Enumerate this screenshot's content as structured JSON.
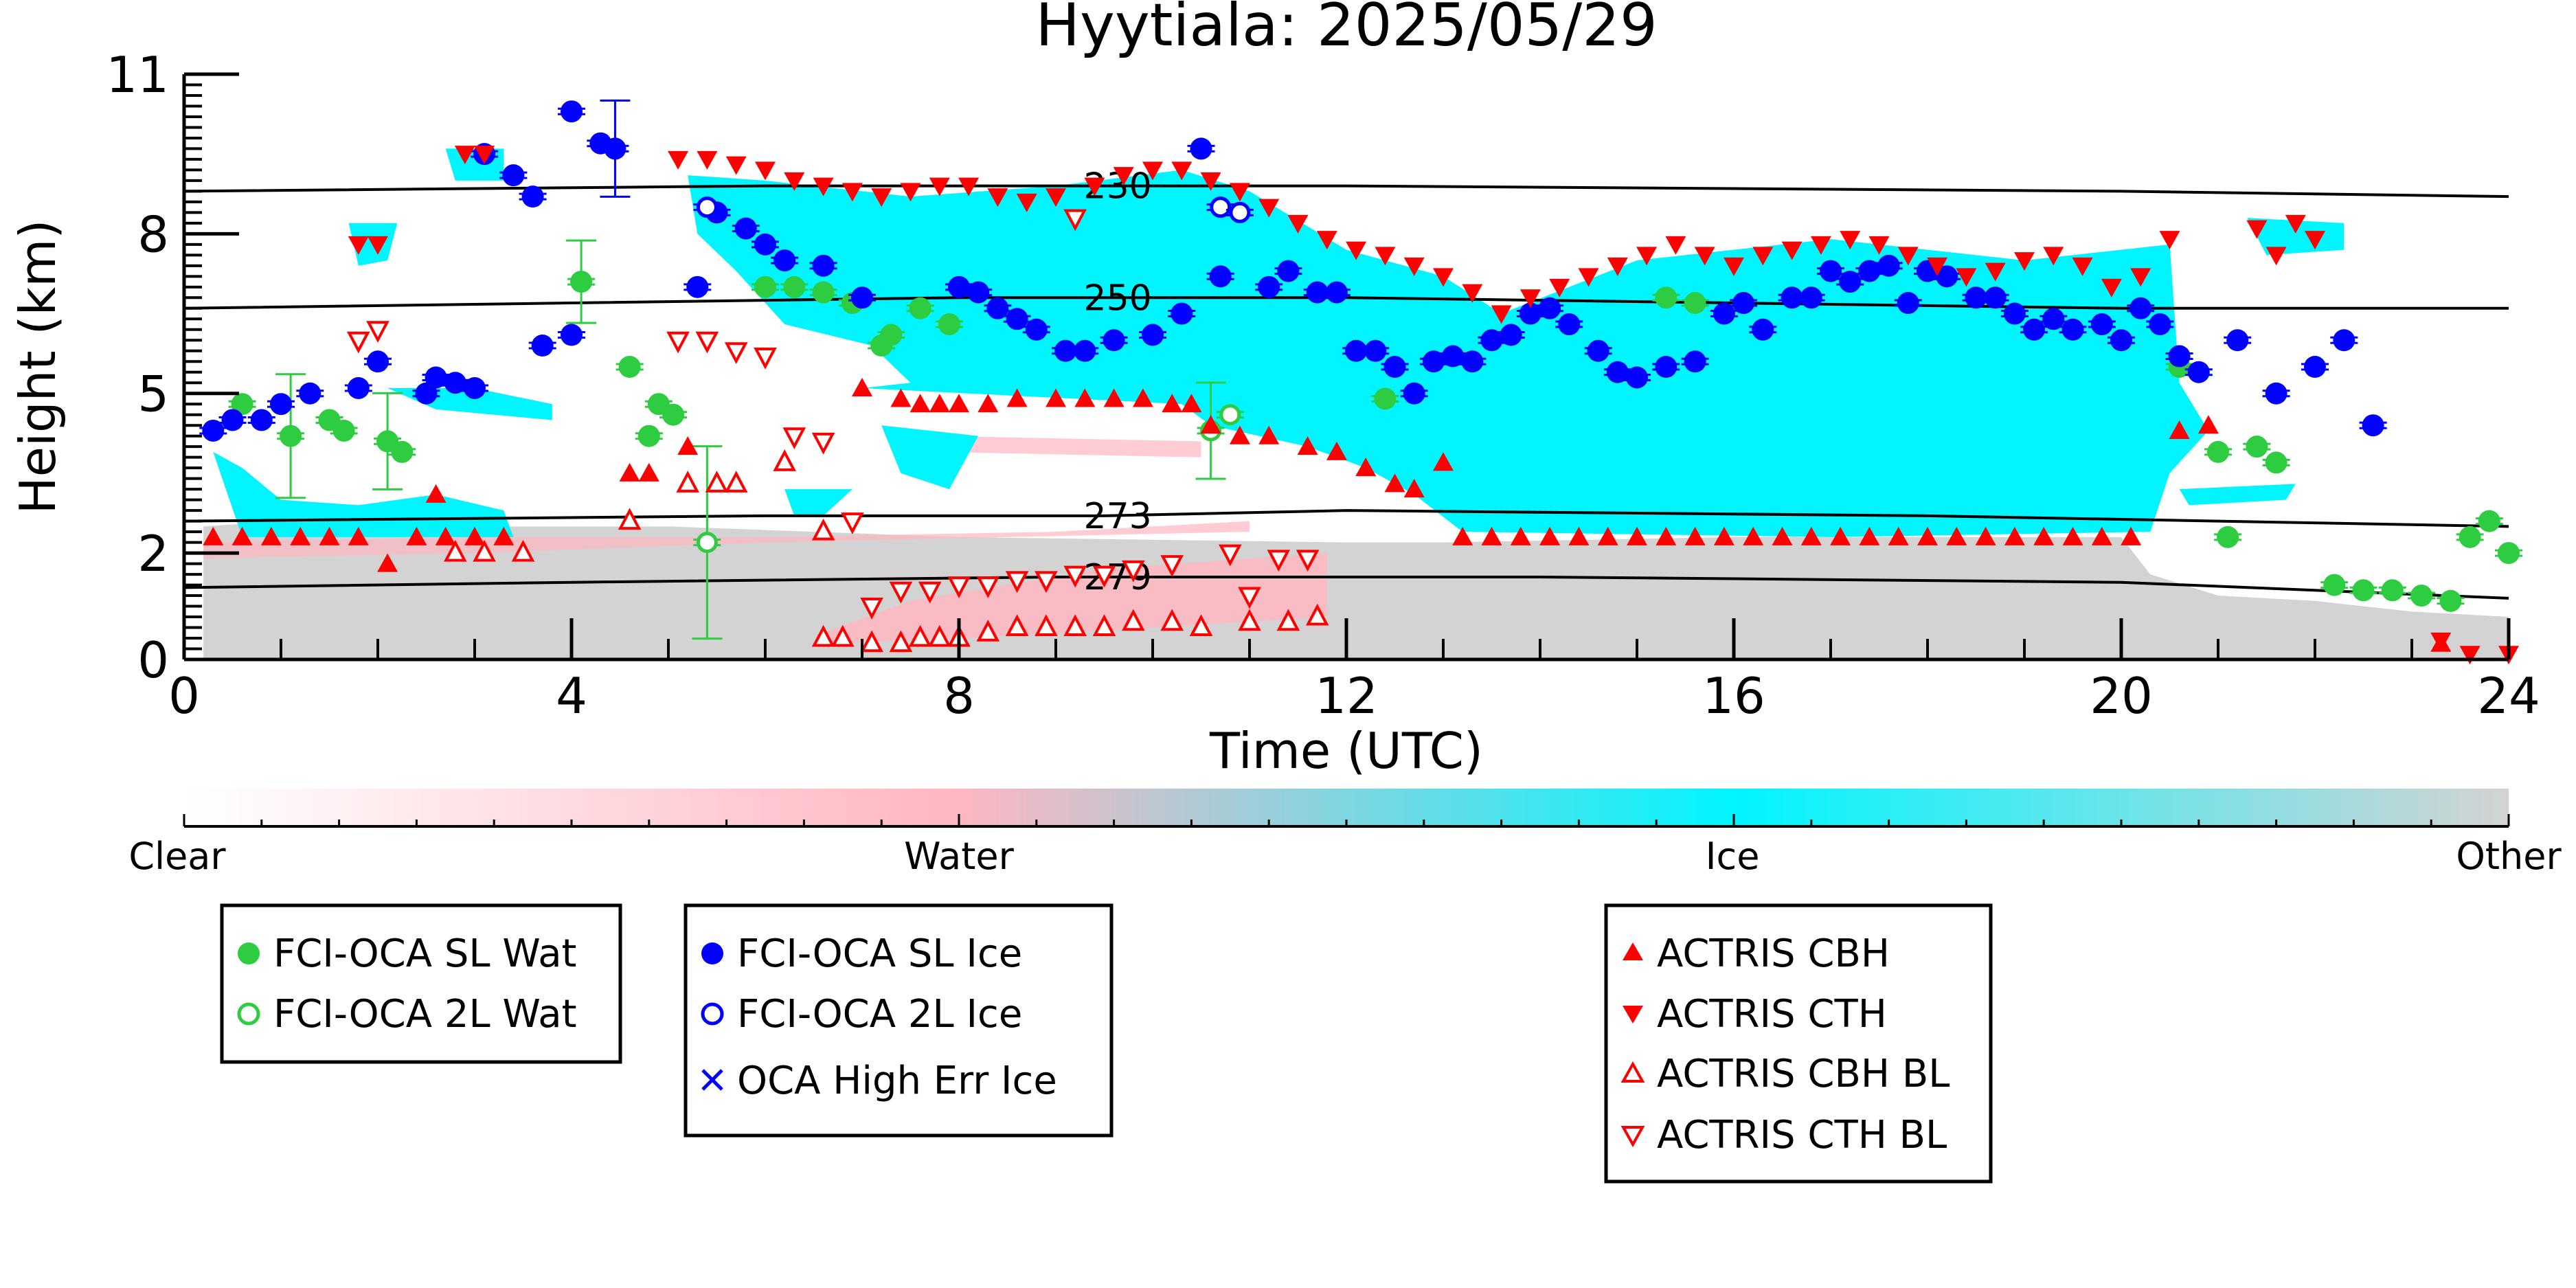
{
  "chart_data": {
    "type": "scatter",
    "title": "Hyytiala: 2025/05/29",
    "xlabel": "Time (UTC)",
    "ylabel": "Height (km)",
    "xlim": [
      0,
      24
    ],
    "ylim": [
      0,
      11
    ],
    "x_ticks": [
      "0",
      "4",
      "8",
      "12",
      "16",
      "20",
      "24"
    ],
    "y_ticks": [
      "0",
      "2",
      "5",
      "8",
      "11"
    ],
    "colorbar": {
      "labels": [
        "Clear",
        "Water",
        "Ice",
        "Other"
      ],
      "colors": [
        "#ffffff",
        "#ffb6c1",
        "#00ffff",
        "#d3d3d3"
      ]
    },
    "colors": {
      "sl_water": "#2ecc40",
      "sl_ice": "#0000ff",
      "actris": "#ff0000",
      "ice_cloud": "#00f5ff",
      "water_cloud": "#ffb6c1",
      "other": "#d3d3d3"
    },
    "isotherms": [
      {
        "label": "230",
        "label_x": 9.5,
        "points": [
          [
            0,
            8.8
          ],
          [
            6,
            8.9
          ],
          [
            12,
            8.9
          ],
          [
            20,
            8.8
          ],
          [
            24,
            8.7
          ]
        ]
      },
      {
        "label": "250",
        "label_x": 9.5,
        "points": [
          [
            0,
            6.6
          ],
          [
            4,
            6.7
          ],
          [
            8,
            6.8
          ],
          [
            12,
            6.8
          ],
          [
            20,
            6.6
          ],
          [
            24,
            6.6
          ]
        ]
      },
      {
        "label": "273",
        "label_x": 9.5,
        "points": [
          [
            0,
            2.6
          ],
          [
            6,
            2.7
          ],
          [
            9.5,
            2.7
          ],
          [
            12,
            2.8
          ],
          [
            18,
            2.7
          ],
          [
            24,
            2.5
          ]
        ]
      },
      {
        "label": "279",
        "label_x": 9.5,
        "points": [
          [
            0,
            1.35
          ],
          [
            4,
            1.45
          ],
          [
            9,
            1.55
          ],
          [
            14,
            1.55
          ],
          [
            20,
            1.45
          ],
          [
            24,
            1.15
          ]
        ]
      }
    ],
    "fci_oca_sl_wat": [
      [
        0.6,
        4.8
      ],
      [
        1.1,
        4.2
      ],
      [
        1.5,
        4.5
      ],
      [
        1.65,
        4.3
      ],
      [
        2.1,
        4.1
      ],
      [
        2.25,
        3.9
      ],
      [
        4.1,
        7.1
      ],
      [
        4.6,
        5.5
      ],
      [
        4.9,
        4.8
      ],
      [
        5.05,
        4.6
      ],
      [
        4.8,
        4.2
      ],
      [
        6.0,
        7.0
      ],
      [
        6.3,
        7.0
      ],
      [
        6.6,
        6.9
      ],
      [
        6.9,
        6.7
      ],
      [
        7.2,
        5.9
      ],
      [
        7.3,
        6.1
      ],
      [
        7.6,
        6.6
      ],
      [
        7.9,
        6.3
      ],
      [
        12.4,
        4.9
      ],
      [
        15.3,
        6.8
      ],
      [
        15.6,
        6.7
      ],
      [
        20.6,
        5.5
      ],
      [
        21.0,
        3.9
      ],
      [
        21.4,
        4.0
      ],
      [
        21.6,
        3.7
      ],
      [
        21.1,
        2.3
      ],
      [
        22.2,
        1.4
      ],
      [
        22.5,
        1.3
      ],
      [
        22.8,
        1.3
      ],
      [
        23.1,
        1.2
      ],
      [
        23.4,
        1.1
      ],
      [
        23.8,
        2.6
      ],
      [
        23.6,
        2.3
      ],
      [
        24.0,
        2.0
      ]
    ],
    "fci_oca_2l_wat": [
      [
        5.4,
        2.2
      ],
      [
        10.6,
        4.3
      ],
      [
        10.8,
        4.6
      ]
    ],
    "fci_oca_sl_ice": [
      [
        0.3,
        4.3
      ],
      [
        0.5,
        4.5
      ],
      [
        0.8,
        4.5
      ],
      [
        1.0,
        4.8
      ],
      [
        1.3,
        5.0
      ],
      [
        1.8,
        5.1
      ],
      [
        2.0,
        5.6
      ],
      [
        2.5,
        5.0
      ],
      [
        2.6,
        5.3
      ],
      [
        2.8,
        5.2
      ],
      [
        3.0,
        5.1
      ],
      [
        3.1,
        9.5
      ],
      [
        3.4,
        9.1
      ],
      [
        3.6,
        8.7
      ],
      [
        3.7,
        5.9
      ],
      [
        4.0,
        6.1
      ],
      [
        4.0,
        10.3
      ],
      [
        4.3,
        9.7
      ],
      [
        4.45,
        9.6
      ],
      [
        5.3,
        7.0
      ],
      [
        5.5,
        8.4
      ],
      [
        5.8,
        8.1
      ],
      [
        6.0,
        7.8
      ],
      [
        6.2,
        7.5
      ],
      [
        6.6,
        7.4
      ],
      [
        7.0,
        6.8
      ],
      [
        8.0,
        7.0
      ],
      [
        8.2,
        6.9
      ],
      [
        8.4,
        6.6
      ],
      [
        8.6,
        6.4
      ],
      [
        8.8,
        6.2
      ],
      [
        9.1,
        5.8
      ],
      [
        9.3,
        5.8
      ],
      [
        9.6,
        6.0
      ],
      [
        10.0,
        6.1
      ],
      [
        10.3,
        6.5
      ],
      [
        10.5,
        9.6
      ],
      [
        10.7,
        7.2
      ],
      [
        11.2,
        7.0
      ],
      [
        11.4,
        7.3
      ],
      [
        11.7,
        6.9
      ],
      [
        11.9,
        6.9
      ],
      [
        12.1,
        5.8
      ],
      [
        12.3,
        5.8
      ],
      [
        12.5,
        5.5
      ],
      [
        12.7,
        5.0
      ],
      [
        12.9,
        5.6
      ],
      [
        13.1,
        5.7
      ],
      [
        13.3,
        5.6
      ],
      [
        13.5,
        6.0
      ],
      [
        13.7,
        6.1
      ],
      [
        13.9,
        6.5
      ],
      [
        14.1,
        6.6
      ],
      [
        14.3,
        6.3
      ],
      [
        14.6,
        5.8
      ],
      [
        14.8,
        5.4
      ],
      [
        15.0,
        5.3
      ],
      [
        15.3,
        5.5
      ],
      [
        15.6,
        5.6
      ],
      [
        15.9,
        6.5
      ],
      [
        16.1,
        6.7
      ],
      [
        16.3,
        6.2
      ],
      [
        16.6,
        6.8
      ],
      [
        16.8,
        6.8
      ],
      [
        17.0,
        7.3
      ],
      [
        17.2,
        7.1
      ],
      [
        17.4,
        7.3
      ],
      [
        17.6,
        7.4
      ],
      [
        17.8,
        6.7
      ],
      [
        18.0,
        7.3
      ],
      [
        18.2,
        7.2
      ],
      [
        18.5,
        6.8
      ],
      [
        18.7,
        6.8
      ],
      [
        18.9,
        6.5
      ],
      [
        19.1,
        6.2
      ],
      [
        19.3,
        6.4
      ],
      [
        19.5,
        6.2
      ],
      [
        19.8,
        6.3
      ],
      [
        20.0,
        6.0
      ],
      [
        20.2,
        6.6
      ],
      [
        20.4,
        6.3
      ],
      [
        20.6,
        5.7
      ],
      [
        20.8,
        5.4
      ],
      [
        21.2,
        6.0
      ],
      [
        21.6,
        5.0
      ],
      [
        22.0,
        5.5
      ],
      [
        22.3,
        6.0
      ],
      [
        22.6,
        4.4
      ]
    ],
    "fci_oca_2l_ice": [
      [
        5.4,
        8.5
      ],
      [
        10.7,
        8.5
      ],
      [
        10.9,
        8.4
      ]
    ],
    "actris_cbh": [
      [
        0.3,
        2.3
      ],
      [
        0.6,
        2.3
      ],
      [
        0.9,
        2.3
      ],
      [
        1.2,
        2.3
      ],
      [
        1.5,
        2.3
      ],
      [
        1.8,
        2.3
      ],
      [
        2.1,
        1.8
      ],
      [
        2.4,
        2.3
      ],
      [
        2.7,
        2.3
      ],
      [
        3.0,
        2.3
      ],
      [
        3.3,
        2.3
      ],
      [
        2.6,
        3.1
      ],
      [
        4.6,
        3.5
      ],
      [
        4.8,
        3.5
      ],
      [
        5.2,
        4.0
      ],
      [
        7.0,
        5.1
      ],
      [
        7.4,
        4.9
      ],
      [
        7.6,
        4.8
      ],
      [
        7.8,
        4.8
      ],
      [
        8.0,
        4.8
      ],
      [
        8.3,
        4.8
      ],
      [
        8.6,
        4.9
      ],
      [
        9.0,
        4.9
      ],
      [
        9.3,
        4.9
      ],
      [
        9.6,
        4.9
      ],
      [
        9.9,
        4.9
      ],
      [
        10.2,
        4.8
      ],
      [
        10.4,
        4.8
      ],
      [
        10.6,
        4.4
      ],
      [
        10.9,
        4.2
      ],
      [
        11.2,
        4.2
      ],
      [
        11.6,
        4.0
      ],
      [
        11.9,
        3.9
      ],
      [
        12.2,
        3.6
      ],
      [
        12.5,
        3.3
      ],
      [
        12.7,
        3.2
      ],
      [
        13.0,
        3.7
      ],
      [
        13.2,
        2.3
      ],
      [
        13.5,
        2.3
      ],
      [
        13.8,
        2.3
      ],
      [
        14.1,
        2.3
      ],
      [
        14.4,
        2.3
      ],
      [
        14.7,
        2.3
      ],
      [
        15.0,
        2.3
      ],
      [
        15.3,
        2.3
      ],
      [
        15.6,
        2.3
      ],
      [
        15.9,
        2.3
      ],
      [
        16.2,
        2.3
      ],
      [
        16.5,
        2.3
      ],
      [
        16.8,
        2.3
      ],
      [
        17.1,
        2.3
      ],
      [
        17.4,
        2.3
      ],
      [
        17.7,
        2.3
      ],
      [
        18.0,
        2.3
      ],
      [
        18.3,
        2.3
      ],
      [
        18.6,
        2.3
      ],
      [
        18.9,
        2.3
      ],
      [
        19.2,
        2.3
      ],
      [
        19.5,
        2.3
      ],
      [
        19.8,
        2.3
      ],
      [
        20.1,
        2.3
      ],
      [
        20.6,
        4.3
      ],
      [
        20.9,
        4.4
      ],
      [
        23.3,
        0.3
      ]
    ],
    "actris_cth": [
      [
        1.8,
        7.8
      ],
      [
        2.0,
        7.8
      ],
      [
        2.9,
        9.5
      ],
      [
        3.1,
        9.5
      ],
      [
        5.1,
        9.4
      ],
      [
        5.4,
        9.4
      ],
      [
        5.7,
        9.3
      ],
      [
        6.0,
        9.2
      ],
      [
        6.3,
        9.0
      ],
      [
        6.6,
        8.9
      ],
      [
        6.9,
        8.8
      ],
      [
        7.2,
        8.7
      ],
      [
        7.5,
        8.8
      ],
      [
        7.8,
        8.9
      ],
      [
        8.1,
        8.9
      ],
      [
        8.4,
        8.7
      ],
      [
        8.7,
        8.6
      ],
      [
        9.0,
        8.7
      ],
      [
        9.4,
        8.9
      ],
      [
        9.7,
        9.1
      ],
      [
        10.0,
        9.2
      ],
      [
        10.3,
        9.2
      ],
      [
        10.6,
        9.0
      ],
      [
        10.9,
        8.8
      ],
      [
        11.2,
        8.5
      ],
      [
        11.5,
        8.2
      ],
      [
        11.8,
        7.9
      ],
      [
        12.1,
        7.7
      ],
      [
        12.4,
        7.6
      ],
      [
        12.7,
        7.4
      ],
      [
        13.0,
        7.2
      ],
      [
        13.3,
        6.9
      ],
      [
        13.6,
        6.5
      ],
      [
        13.9,
        6.8
      ],
      [
        14.2,
        7.0
      ],
      [
        14.5,
        7.2
      ],
      [
        14.8,
        7.4
      ],
      [
        15.1,
        7.6
      ],
      [
        15.4,
        7.8
      ],
      [
        15.7,
        7.6
      ],
      [
        16.0,
        7.4
      ],
      [
        16.3,
        7.6
      ],
      [
        16.6,
        7.7
      ],
      [
        16.9,
        7.8
      ],
      [
        17.2,
        7.9
      ],
      [
        17.5,
        7.8
      ],
      [
        17.8,
        7.6
      ],
      [
        18.1,
        7.4
      ],
      [
        18.4,
        7.2
      ],
      [
        18.7,
        7.3
      ],
      [
        19.0,
        7.5
      ],
      [
        19.3,
        7.6
      ],
      [
        19.6,
        7.4
      ],
      [
        19.9,
        7.0
      ],
      [
        20.2,
        7.2
      ],
      [
        20.5,
        7.9
      ],
      [
        21.4,
        8.1
      ],
      [
        21.8,
        8.2
      ],
      [
        22.0,
        7.9
      ],
      [
        21.6,
        7.6
      ],
      [
        23.3,
        0.35
      ],
      [
        23.6,
        0.1
      ],
      [
        24.0,
        0.1
      ]
    ],
    "actris_cbh_bl": [
      [
        2.8,
        2.0
      ],
      [
        3.1,
        2.0
      ],
      [
        3.5,
        2.0
      ],
      [
        4.6,
        2.6
      ],
      [
        5.2,
        3.3
      ],
      [
        5.5,
        3.3
      ],
      [
        5.7,
        3.3
      ],
      [
        6.6,
        0.4
      ],
      [
        6.8,
        0.4
      ],
      [
        7.1,
        0.3
      ],
      [
        7.4,
        0.3
      ],
      [
        7.6,
        0.4
      ],
      [
        7.8,
        0.4
      ],
      [
        8.0,
        0.4
      ],
      [
        8.3,
        0.5
      ],
      [
        8.6,
        0.6
      ],
      [
        8.9,
        0.6
      ],
      [
        9.2,
        0.6
      ],
      [
        9.5,
        0.6
      ],
      [
        9.8,
        0.7
      ],
      [
        10.2,
        0.7
      ],
      [
        10.5,
        0.6
      ],
      [
        11.0,
        0.7
      ],
      [
        11.4,
        0.7
      ],
      [
        11.7,
        0.8
      ],
      [
        6.2,
        3.7
      ],
      [
        6.6,
        2.4
      ]
    ],
    "actris_cth_bl": [
      [
        1.8,
        6.0
      ],
      [
        2.0,
        6.2
      ],
      [
        5.1,
        6.0
      ],
      [
        5.4,
        6.0
      ],
      [
        5.7,
        5.8
      ],
      [
        6.0,
        5.7
      ],
      [
        6.3,
        4.2
      ],
      [
        6.6,
        4.1
      ],
      [
        6.9,
        2.6
      ],
      [
        7.1,
        1.0
      ],
      [
        7.4,
        1.3
      ],
      [
        7.7,
        1.3
      ],
      [
        8.0,
        1.4
      ],
      [
        8.3,
        1.4
      ],
      [
        8.6,
        1.5
      ],
      [
        8.9,
        1.5
      ],
      [
        9.2,
        1.6
      ],
      [
        9.5,
        1.6
      ],
      [
        9.8,
        1.7
      ],
      [
        10.2,
        1.8
      ],
      [
        10.8,
        2.0
      ],
      [
        11.3,
        1.9
      ],
      [
        11.6,
        1.9
      ],
      [
        9.2,
        8.3
      ],
      [
        11.0,
        1.2
      ]
    ]
  },
  "legends": {
    "water": [
      "FCI-OCA SL Wat",
      "FCI-OCA 2L Wat"
    ],
    "ice": [
      "FCI-OCA SL Ice",
      "FCI-OCA 2L Ice",
      "OCA High Err Ice"
    ],
    "actris": [
      "ACTRIS CBH",
      "ACTRIS CTH",
      "ACTRIS CBH BL",
      "ACTRIS CTH BL"
    ]
  }
}
